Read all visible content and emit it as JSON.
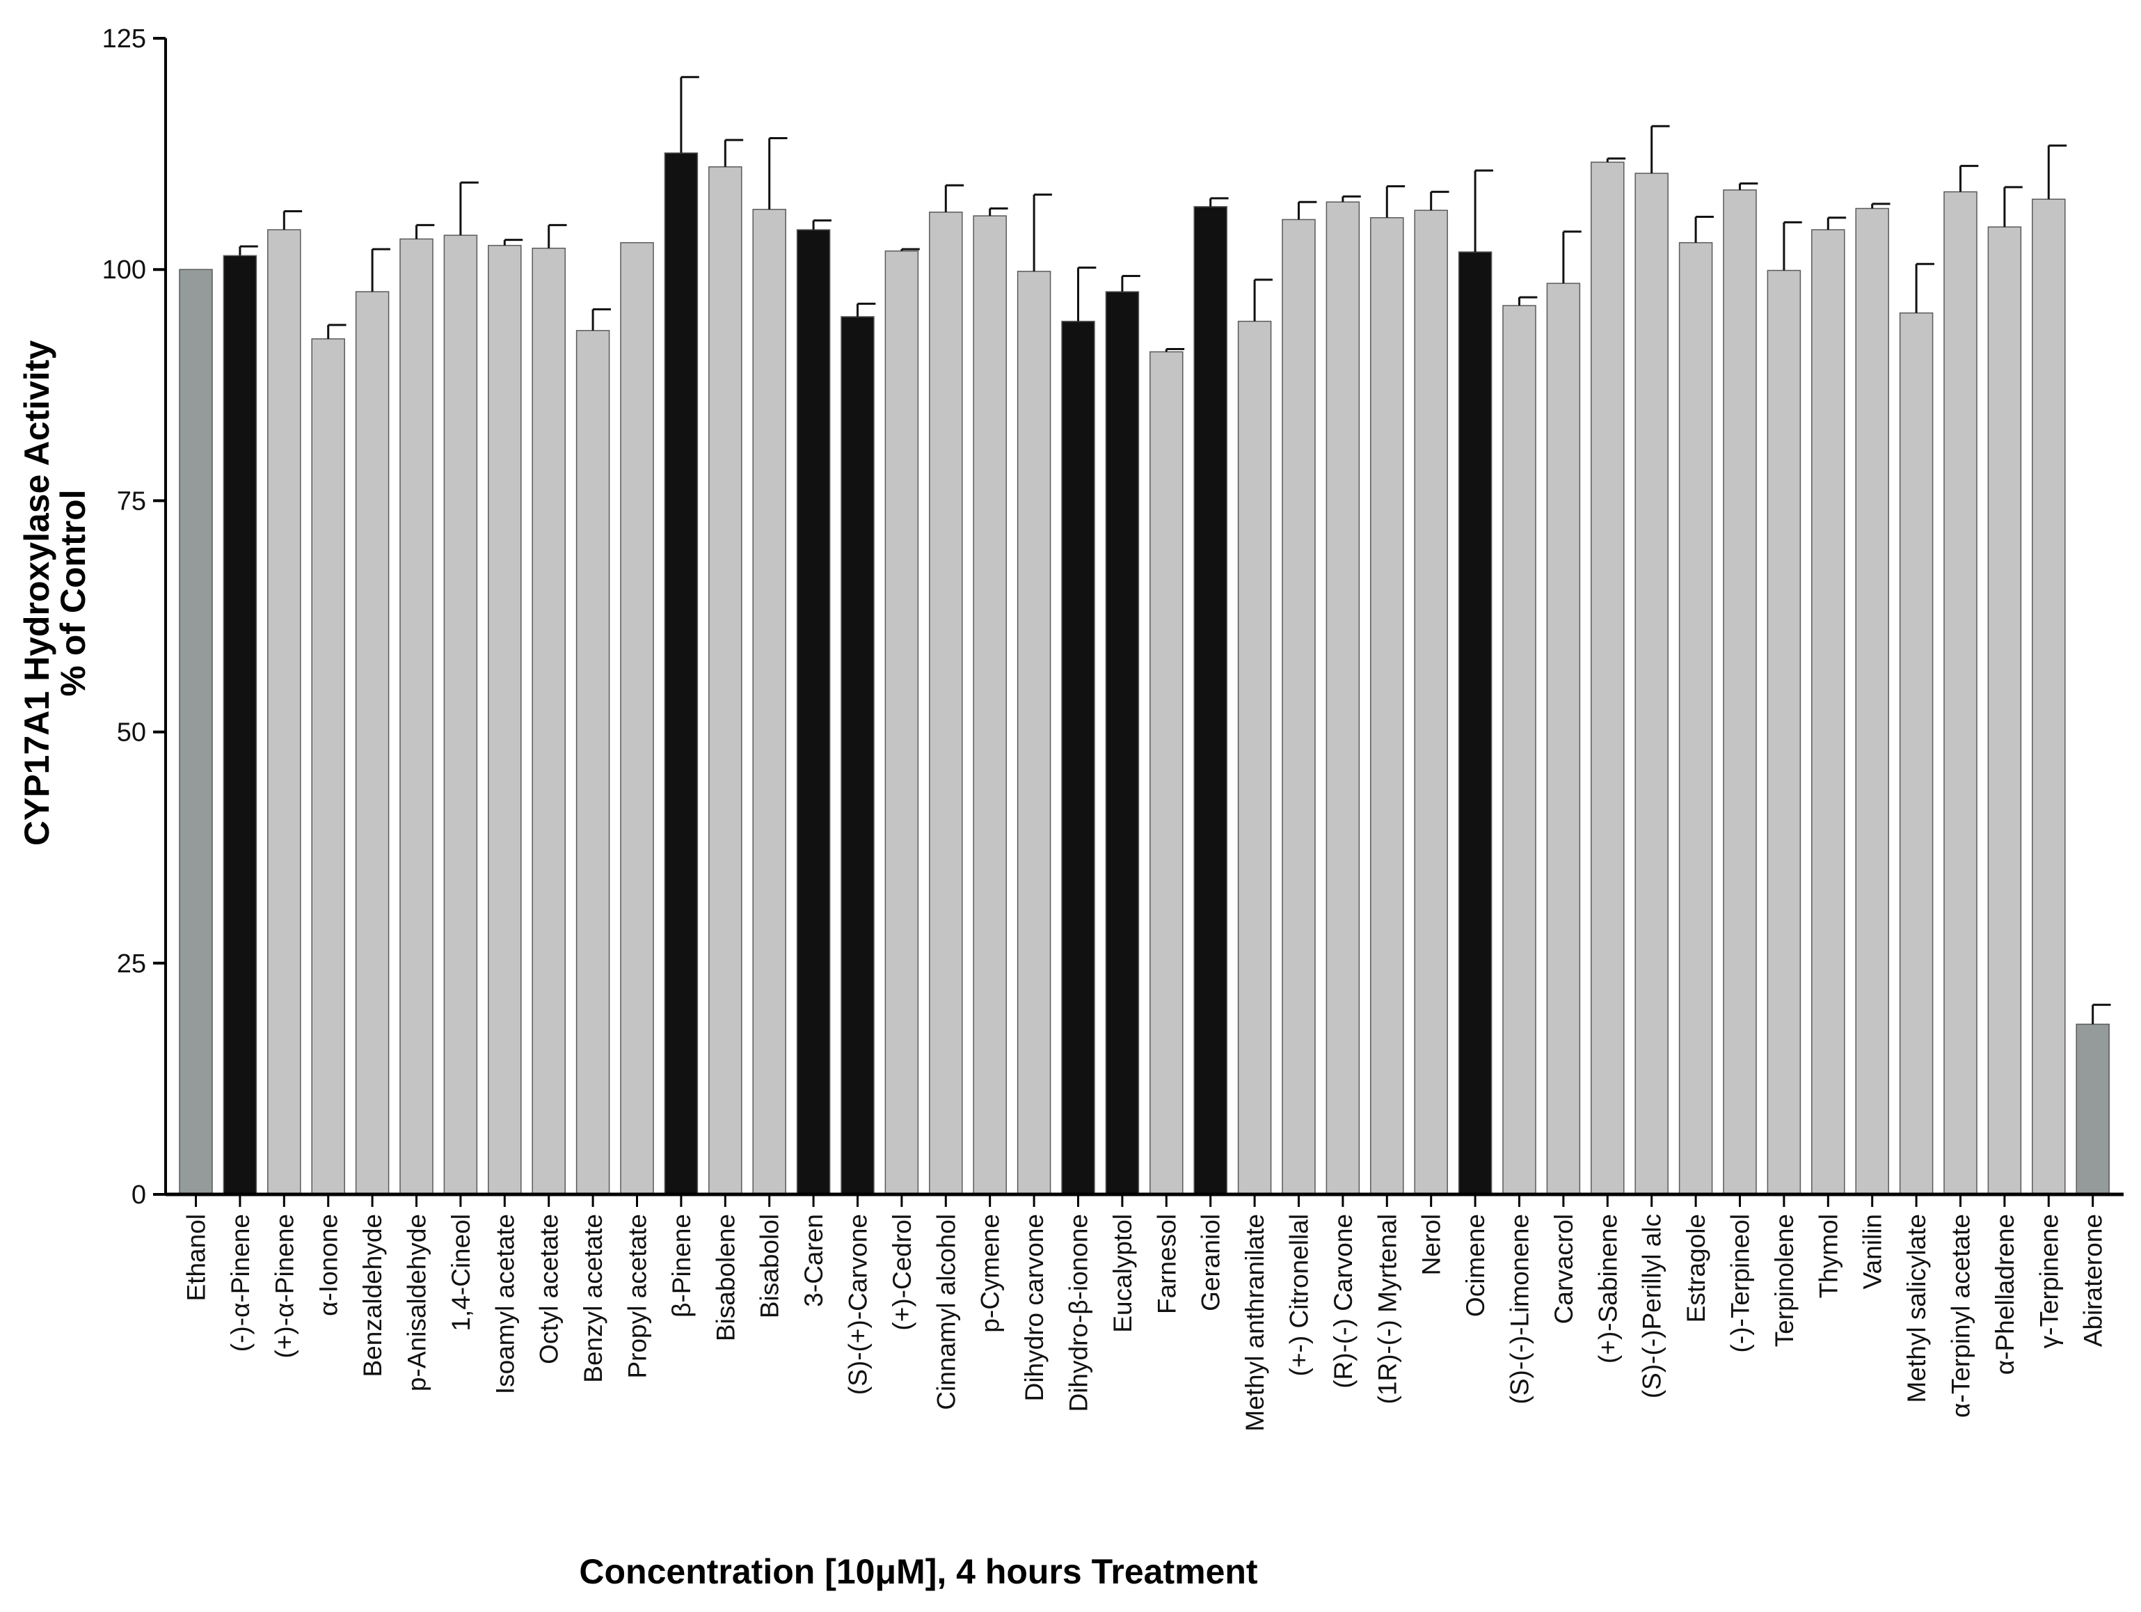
{
  "chart_data": {
    "type": "bar",
    "title": "",
    "ylabel_line1": "CYP17A1 Hydroxylase Activity",
    "ylabel_line2": "% of Control",
    "xlabel": "Concentration [10μM], 4 hours Treatment",
    "ylim": [
      0,
      125
    ],
    "yticks": [
      "0",
      "25",
      "50",
      "75",
      "100",
      "125"
    ],
    "colors": {
      "gray": "#c4c4c4",
      "black": "#111111",
      "control": "#959a9a",
      "outline": "#5a5a5a"
    },
    "bars": [
      {
        "label": "Ethanol",
        "value": 100,
        "error": 0,
        "color": "control"
      },
      {
        "label": "(-)-α-Pinene",
        "value": 101.5,
        "error": 1.0,
        "color": "black"
      },
      {
        "label": "(+)-α-Pinene",
        "value": 104.3,
        "error": 2.0,
        "color": "gray"
      },
      {
        "label": "α-Ionone",
        "value": 92.5,
        "error": 1.5,
        "color": "gray"
      },
      {
        "label": "Benzaldehyde",
        "value": 97.6,
        "error": 4.6,
        "color": "gray"
      },
      {
        "label": "p-Anisaldehyde",
        "value": 103.3,
        "error": 1.5,
        "color": "gray"
      },
      {
        "label": "1,4-Cineol",
        "value": 103.7,
        "error": 5.7,
        "color": "gray"
      },
      {
        "label": "Isoamyl acetate",
        "value": 102.6,
        "error": 0.6,
        "color": "gray"
      },
      {
        "label": "Octyl acetate",
        "value": 102.3,
        "error": 2.5,
        "color": "gray"
      },
      {
        "label": "Benzyl acetate",
        "value": 93.4,
        "error": 2.3,
        "color": "gray"
      },
      {
        "label": "Propyl acetate",
        "value": 102.9,
        "error": 0,
        "color": "gray"
      },
      {
        "label": "β-Pinene",
        "value": 112.6,
        "error": 8.2,
        "color": "black"
      },
      {
        "label": "Bisabolene",
        "value": 111.1,
        "error": 2.9,
        "color": "gray"
      },
      {
        "label": "Bisabolol",
        "value": 106.5,
        "error": 7.7,
        "color": "gray"
      },
      {
        "label": "3-Caren",
        "value": 104.3,
        "error": 1.0,
        "color": "black"
      },
      {
        "label": "(S)-(+)-Carvone",
        "value": 94.9,
        "error": 1.4,
        "color": "black"
      },
      {
        "label": "(+)-Cedrol",
        "value": 102.0,
        "error": 0.2,
        "color": "gray"
      },
      {
        "label": "Cinnamyl alcohol",
        "value": 106.2,
        "error": 2.9,
        "color": "gray"
      },
      {
        "label": "p-Cymene",
        "value": 105.8,
        "error": 0.8,
        "color": "gray"
      },
      {
        "label": "Dihydro carvone",
        "value": 99.8,
        "error": 8.3,
        "color": "gray"
      },
      {
        "label": "Dihydro-β-ionone",
        "value": 94.4,
        "error": 5.8,
        "color": "black"
      },
      {
        "label": "Eucalyptol",
        "value": 97.6,
        "error": 1.7,
        "color": "black"
      },
      {
        "label": "Farnesol",
        "value": 91.1,
        "error": 0.3,
        "color": "gray"
      },
      {
        "label": "Geraniol",
        "value": 106.8,
        "error": 0.9,
        "color": "black"
      },
      {
        "label": "Methyl anthranilate",
        "value": 94.4,
        "error": 4.5,
        "color": "gray"
      },
      {
        "label": "(+-) Citronellal",
        "value": 105.4,
        "error": 1.9,
        "color": "gray"
      },
      {
        "label": "(R)-(-) Carvone",
        "value": 107.3,
        "error": 0.6,
        "color": "gray"
      },
      {
        "label": "(1R)-(-) Myrtenal",
        "value": 105.6,
        "error": 3.4,
        "color": "gray"
      },
      {
        "label": "Nerol",
        "value": 106.4,
        "error": 2.0,
        "color": "gray"
      },
      {
        "label": "Ocimene",
        "value": 101.9,
        "error": 8.8,
        "color": "black"
      },
      {
        "label": "(S)-(-)-Limonene",
        "value": 96.1,
        "error": 0.9,
        "color": "gray"
      },
      {
        "label": "Carvacrol",
        "value": 98.5,
        "error": 5.6,
        "color": "gray"
      },
      {
        "label": "(+)-Sabinene",
        "value": 111.6,
        "error": 0.4,
        "color": "gray"
      },
      {
        "label": "(S)-(-)Perillyl alc",
        "value": 110.4,
        "error": 5.1,
        "color": "gray"
      },
      {
        "label": "Estragole",
        "value": 102.9,
        "error": 2.8,
        "color": "gray"
      },
      {
        "label": "(-)-Terpineol",
        "value": 108.6,
        "error": 0.7,
        "color": "gray"
      },
      {
        "label": "Terpinolene",
        "value": 99.9,
        "error": 5.2,
        "color": "gray"
      },
      {
        "label": "Thymol",
        "value": 104.3,
        "error": 1.3,
        "color": "gray"
      },
      {
        "label": "Vanilin",
        "value": 106.6,
        "error": 0.5,
        "color": "gray"
      },
      {
        "label": "Methyl salicylate",
        "value": 95.3,
        "error": 5.3,
        "color": "gray"
      },
      {
        "label": "α-Terpinyl acetate",
        "value": 108.4,
        "error": 2.8,
        "color": "gray"
      },
      {
        "label": "α-Phelladrene",
        "value": 104.6,
        "error": 4.3,
        "color": "gray"
      },
      {
        "label": "γ-Terpinene",
        "value": 107.6,
        "error": 5.8,
        "color": "gray"
      },
      {
        "label": "Abiraterone",
        "value": 18.4,
        "error": 2.1,
        "color": "control"
      }
    ]
  }
}
